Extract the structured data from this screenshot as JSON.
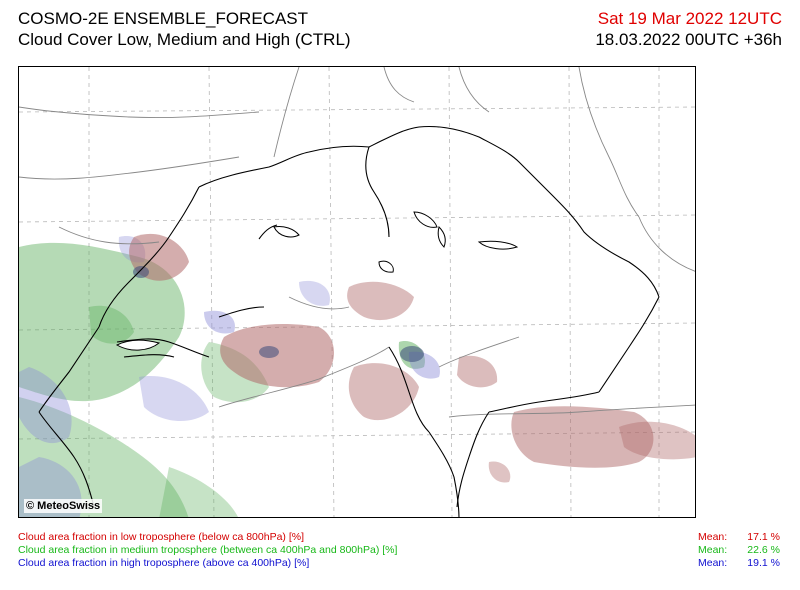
{
  "header": {
    "title_line1": "COSMO-2E ENSEMBLE_FORECAST",
    "title_line2": "Cloud Cover Low, Medium and High (CTRL)",
    "valid_time": "Sat 19 Mar 2022 12UTC",
    "run_time": "18.03.2022 00UTC +36h"
  },
  "map": {
    "credit": "© MeteoSwiss"
  },
  "legend": {
    "low": {
      "label": "Cloud area fraction in low troposphere (below ca 800hPa) [%]",
      "mean_label": "Mean:",
      "mean_value": "17.1 %",
      "color": "#d40000"
    },
    "medium": {
      "label": "Cloud area fraction in medium troposphere (between ca 400hPa and 800hPa) [%]",
      "mean_label": "Mean:",
      "mean_value": "22.6 %",
      "color": "#18b818"
    },
    "high": {
      "label": "Cloud area fraction in high troposphere (above ca 400hPa) [%]",
      "mean_label": "Mean:",
      "mean_value": "19.1 %",
      "color": "#1010d0"
    }
  }
}
